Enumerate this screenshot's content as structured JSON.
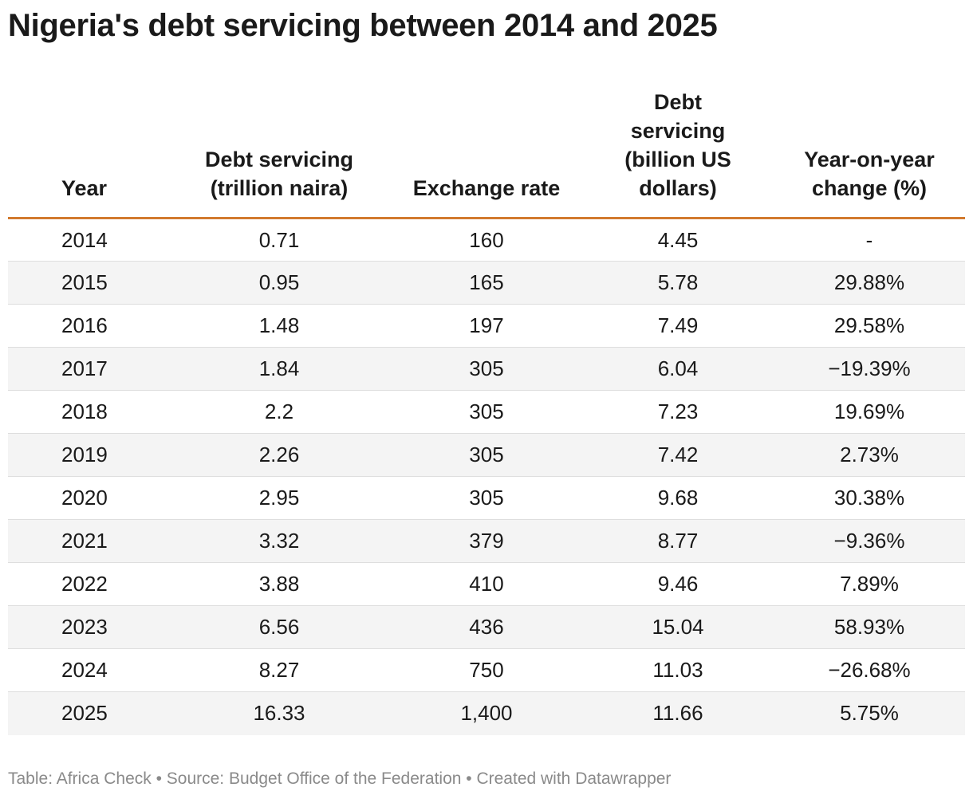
{
  "title": "Nigeria's debt servicing between 2014 and 2025",
  "footer": "Table: Africa Check • Source: Budget Office of the Federation • Created with Datawrapper",
  "colors": {
    "header_rule": "#d27a2e",
    "stripe": "#f4f4f4",
    "row_divider": "#dedede",
    "footer_text": "#8a8a8a"
  },
  "chart_data": {
    "type": "table",
    "columns": [
      "Year",
      "Debt servicing (trillion naira)",
      "Exchange rate",
      "Debt servicing (billion US dollars)",
      "Year-on-year change (%)"
    ],
    "rows": [
      [
        "2014",
        "0.71",
        "160",
        "4.45",
        "-"
      ],
      [
        "2015",
        "0.95",
        "165",
        "5.78",
        "29.88%"
      ],
      [
        "2016",
        "1.48",
        "197",
        "7.49",
        "29.58%"
      ],
      [
        "2017",
        "1.84",
        "305",
        "6.04",
        "−19.39%"
      ],
      [
        "2018",
        "2.2",
        "305",
        "7.23",
        "19.69%"
      ],
      [
        "2019",
        "2.26",
        "305",
        "7.42",
        "2.73%"
      ],
      [
        "2020",
        "2.95",
        "305",
        "9.68",
        "30.38%"
      ],
      [
        "2021",
        "3.32",
        "379",
        "8.77",
        "−9.36%"
      ],
      [
        "2022",
        "3.88",
        "410",
        "9.46",
        "7.89%"
      ],
      [
        "2023",
        "6.56",
        "436",
        "15.04",
        "58.93%"
      ],
      [
        "2024",
        "8.27",
        "750",
        "11.03",
        "−26.68%"
      ],
      [
        "2025",
        "16.33",
        "1,400",
        "11.66",
        "5.75%"
      ]
    ]
  }
}
